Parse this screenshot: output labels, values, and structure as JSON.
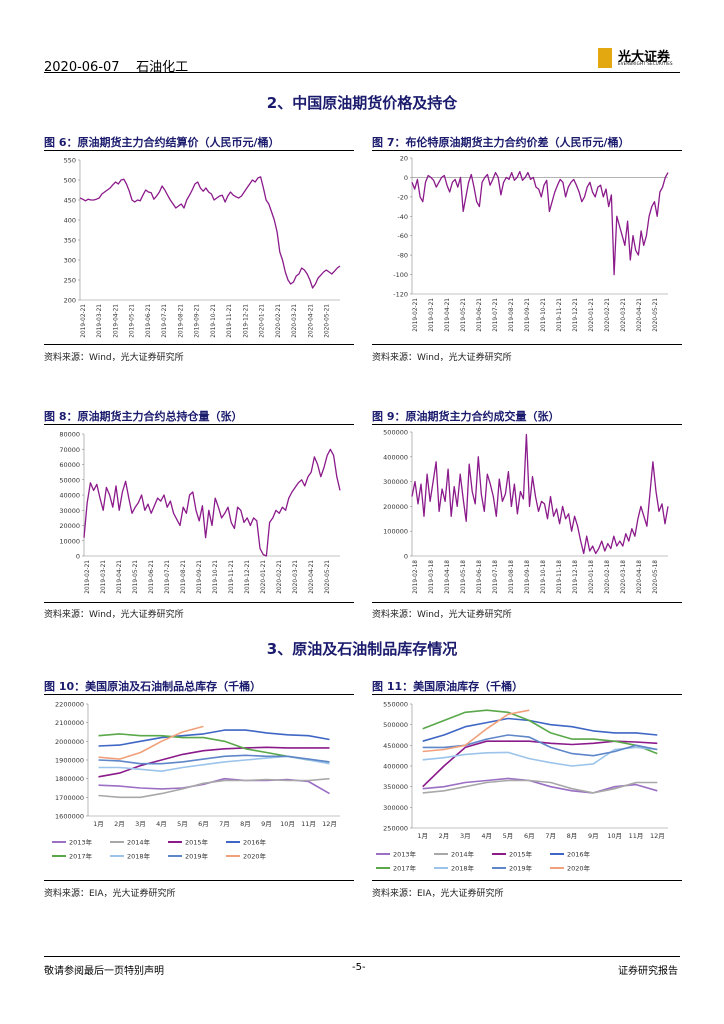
{
  "header": {
    "date": "2020-06-07",
    "sector": "石油化工",
    "logo_cn": "光大证券",
    "logo_en": "EVERBRIGHT SECURITIES"
  },
  "sections": [
    {
      "title": "2、中国原油期货价格及持仓"
    },
    {
      "title": "3、原油及石油制品库存情况"
    }
  ],
  "figures": [
    {
      "title": "图 6：原油期货主力合约结算价（人民币元/桶）",
      "source": "资料来源：Wind，光大证券研究所"
    },
    {
      "title": "图 7：布伦特原油期货主力合约价差（人民币元/桶）",
      "source": "资料来源：Wind，光大证券研究所"
    },
    {
      "title": "图 8：原油期货主力合约总持仓量（张）",
      "source": "资料来源：Wind，光大证券研究所"
    },
    {
      "title": "图 9：原油期货主力合约成交量（张）",
      "source": "资料来源：Wind，光大证券研究所"
    },
    {
      "title": "图 10：美国原油及石油制品总库存（千桶）",
      "source": "资料来源：EIA，光大证券研究所"
    },
    {
      "title": "图 11：美国原油库存（千桶）",
      "source": "资料来源：EIA，光大证券研究所"
    }
  ],
  "footer": {
    "left": "敬请参阅最后一页特别声明",
    "center": "-5-",
    "right": "证券研究报告"
  },
  "colors": {
    "purple": "#8b1a8b",
    "title_navy": "#1b1b6e",
    "logo_gold": "#e3a80f"
  },
  "chart_data": [
    {
      "type": "line",
      "yticks": [
        200,
        250,
        300,
        350,
        400,
        450,
        500,
        550
      ],
      "ylim": [
        200,
        550
      ],
      "xticks": [
        "2019-02-21",
        "2019-03-21",
        "2019-04-21",
        "2019-05-21",
        "2019-06-21",
        "2019-07-21",
        "2019-08-21",
        "2019-09-21",
        "2019-10-21",
        "2019-11-21",
        "2019-12-21",
        "2020-01-21",
        "2020-02-21",
        "2020-03-21",
        "2020-04-21",
        "2020-05-21"
      ],
      "series": [
        {
          "color": "#8b1a8b",
          "values": [
            455,
            452,
            448,
            452,
            450,
            450,
            452,
            455,
            465,
            470,
            475,
            480,
            488,
            495,
            490,
            500,
            502,
            490,
            472,
            450,
            445,
            450,
            448,
            462,
            475,
            470,
            468,
            452,
            460,
            470,
            485,
            475,
            462,
            450,
            440,
            430,
            435,
            440,
            430,
            450,
            462,
            475,
            490,
            495,
            480,
            472,
            480,
            470,
            465,
            450,
            455,
            460,
            462,
            445,
            460,
            470,
            462,
            458,
            455,
            460,
            470,
            480,
            490,
            500,
            495,
            505,
            508,
            480,
            450,
            440,
            420,
            400,
            370,
            320,
            300,
            270,
            250,
            240,
            245,
            260,
            265,
            280,
            275,
            265,
            250,
            230,
            240,
            255,
            262,
            270,
            275,
            270,
            265,
            272,
            280,
            285
          ]
        }
      ]
    },
    {
      "type": "line",
      "yticks": [
        20,
        0,
        -20,
        -40,
        -60,
        -80,
        -100,
        -120
      ],
      "ylim": [
        -120,
        20
      ],
      "xticks": [
        "2019-02-21",
        "2019-03-21",
        "2019-04-21",
        "2019-05-21",
        "2019-06-21",
        "2019-07-21",
        "2019-08-21",
        "2019-09-21",
        "2019-10-21",
        "2019-11-21",
        "2019-12-21",
        "2020-01-21",
        "2020-02-21",
        "2020-03-21",
        "2020-04-21",
        "2020-05-21"
      ],
      "series": [
        {
          "color": "#8b1a8b",
          "values": [
            -5,
            -12,
            -2,
            -20,
            -25,
            -5,
            2,
            0,
            -3,
            -10,
            -5,
            0,
            2,
            -8,
            -15,
            -5,
            -2,
            -10,
            0,
            -35,
            -20,
            -5,
            3,
            -10,
            -25,
            -30,
            -5,
            0,
            3,
            -8,
            -2,
            5,
            0,
            -18,
            -5,
            0,
            -2,
            5,
            -3,
            0,
            6,
            -3,
            0,
            5,
            -2,
            0,
            -10,
            -12,
            -20,
            -8,
            -3,
            -35,
            -25,
            -15,
            -8,
            -2,
            -5,
            -20,
            -10,
            -5,
            -2,
            -8,
            -15,
            -25,
            -20,
            -10,
            -5,
            -15,
            -20,
            -10,
            -8,
            -20,
            -12,
            -30,
            -18,
            -100,
            -40,
            -50,
            -60,
            -70,
            -45,
            -85,
            -60,
            -75,
            -80,
            -55,
            -70,
            -60,
            -40,
            -30,
            -25,
            -40,
            -15,
            -10,
            0,
            5
          ]
        }
      ]
    },
    {
      "type": "line",
      "yticks": [
        0,
        10000,
        20000,
        30000,
        40000,
        50000,
        60000,
        70000,
        80000
      ],
      "ylim": [
        0,
        80000
      ],
      "xticks": [
        "2019-02-21",
        "2019-03-21",
        "2019-04-21",
        "2019-05-21",
        "2019-06-21",
        "2019-07-21",
        "2019-08-21",
        "2019-09-21",
        "2019-10-21",
        "2019-11-21",
        "2019-12-21",
        "2020-01-21",
        "2020-02-21",
        "2020-03-21",
        "2020-04-21",
        "2020-05-21"
      ],
      "series": [
        {
          "color": "#8b1a8b",
          "values": [
            12000,
            35000,
            48000,
            43000,
            47000,
            38000,
            30000,
            45000,
            40000,
            32000,
            46000,
            30000,
            42000,
            49000,
            38000,
            28000,
            32000,
            35000,
            40000,
            30000,
            34000,
            28000,
            33000,
            38000,
            36000,
            40000,
            32000,
            36000,
            28000,
            24000,
            20000,
            32000,
            28000,
            40000,
            42000,
            30000,
            23000,
            33000,
            12000,
            30000,
            20000,
            38000,
            32000,
            25000,
            28000,
            32000,
            22000,
            18000,
            32000,
            30000,
            22000,
            25000,
            20000,
            25000,
            23000,
            5000,
            1000,
            0,
            22000,
            25000,
            30000,
            28000,
            32000,
            30000,
            38000,
            42000,
            45000,
            48000,
            50000,
            46000,
            52000,
            55000,
            65000,
            60000,
            52000,
            58000,
            66000,
            70000,
            66000,
            52000,
            43000
          ]
        }
      ]
    },
    {
      "type": "line",
      "yticks": [
        0,
        100000,
        200000,
        300000,
        400000,
        500000
      ],
      "ylim": [
        0,
        500000
      ],
      "xticks": [
        "2019-02-18",
        "2019-03-18",
        "2019-04-18",
        "2019-05-18",
        "2019-06-18",
        "2019-07-18",
        "2019-08-18",
        "2019-09-18",
        "2019-10-18",
        "2019-11-18",
        "2019-12-18",
        "2020-01-18",
        "2020-02-18",
        "2020-03-18",
        "2020-04-18",
        "2020-05-18"
      ],
      "series": [
        {
          "color": "#8b1a8b",
          "values": [
            240000,
            300000,
            210000,
            290000,
            160000,
            330000,
            220000,
            300000,
            380000,
            180000,
            270000,
            220000,
            350000,
            160000,
            280000,
            200000,
            330000,
            230000,
            140000,
            370000,
            260000,
            210000,
            400000,
            250000,
            180000,
            330000,
            290000,
            240000,
            160000,
            310000,
            220000,
            250000,
            340000,
            200000,
            290000,
            170000,
            260000,
            230000,
            490000,
            200000,
            320000,
            240000,
            180000,
            220000,
            210000,
            150000,
            240000,
            160000,
            190000,
            130000,
            200000,
            150000,
            170000,
            100000,
            160000,
            120000,
            60000,
            10000,
            80000,
            20000,
            40000,
            10000,
            30000,
            60000,
            20000,
            50000,
            30000,
            80000,
            40000,
            60000,
            40000,
            90000,
            60000,
            110000,
            80000,
            150000,
            200000,
            160000,
            120000,
            250000,
            380000,
            260000,
            180000,
            210000,
            130000,
            200000
          ]
        }
      ]
    },
    {
      "type": "line",
      "yticks": [
        1600000,
        1700000,
        1800000,
        1900000,
        2000000,
        2100000,
        2200000
      ],
      "ylim": [
        1600000,
        2200000
      ],
      "xticks": [
        "1月",
        "2月",
        "3月",
        "4月",
        "5月",
        "6月",
        "7月",
        "8月",
        "9月",
        "10月",
        "11月",
        "12月"
      ],
      "legend": [
        "2013年",
        "2014年",
        "2015年",
        "2016年",
        "2017年",
        "2018年",
        "2019年",
        "2020年"
      ],
      "series": [
        {
          "name": "2013年",
          "color": "#9a6fc4",
          "values": [
            1765000,
            1760000,
            1750000,
            1745000,
            1750000,
            1770000,
            1800000,
            1790000,
            1790000,
            1795000,
            1785000,
            1720000
          ]
        },
        {
          "name": "2014年",
          "color": "#a8a8a8",
          "values": [
            1710000,
            1700000,
            1700000,
            1720000,
            1745000,
            1775000,
            1790000,
            1790000,
            1795000,
            1790000,
            1790000,
            1800000
          ]
        },
        {
          "name": "2015年",
          "color": "#8b1a8b",
          "values": [
            1810000,
            1830000,
            1870000,
            1900000,
            1930000,
            1950000,
            1960000,
            1965000,
            1968000,
            1965000,
            1965000,
            1965000
          ]
        },
        {
          "name": "2016年",
          "color": "#3f66c4",
          "values": [
            1975000,
            1980000,
            2000000,
            2020000,
            2030000,
            2040000,
            2060000,
            2060000,
            2045000,
            2035000,
            2030000,
            2010000
          ]
        },
        {
          "name": "2017年",
          "color": "#5aa84a",
          "values": [
            2030000,
            2040000,
            2030000,
            2030000,
            2020000,
            2020000,
            2000000,
            1960000,
            1940000,
            1920000,
            1900000,
            1890000
          ]
        },
        {
          "name": "2018年",
          "color": "#9cc4ea",
          "values": [
            1860000,
            1860000,
            1850000,
            1840000,
            1860000,
            1875000,
            1890000,
            1900000,
            1910000,
            1920000,
            1900000,
            1880000
          ]
        },
        {
          "name": "2019年",
          "color": "#5e86c9",
          "values": [
            1900000,
            1895000,
            1880000,
            1880000,
            1890000,
            1905000,
            1920000,
            1925000,
            1920000,
            1920000,
            1905000,
            1890000
          ]
        },
        {
          "name": "2020年",
          "color": "#f0a07a",
          "values": [
            1915000,
            1905000,
            1940000,
            2000000,
            2050000,
            2080000
          ]
        }
      ]
    },
    {
      "type": "line",
      "yticks": [
        250000,
        300000,
        350000,
        400000,
        450000,
        500000,
        550000
      ],
      "ylim": [
        250000,
        550000
      ],
      "xticks": [
        "1月",
        "2月",
        "3月",
        "4月",
        "5月",
        "6月",
        "7月",
        "8月",
        "9月",
        "10月",
        "11月",
        "12月"
      ],
      "legend": [
        "2013年",
        "2014年",
        "2015年",
        "2016年",
        "2017年",
        "2018年",
        "2019年",
        "2020年"
      ],
      "series": [
        {
          "name": "2013年",
          "color": "#9a6fc4",
          "values": [
            345000,
            350000,
            360000,
            365000,
            370000,
            365000,
            350000,
            340000,
            335000,
            350000,
            355000,
            340000
          ]
        },
        {
          "name": "2014年",
          "color": "#a8a8a8",
          "values": [
            335000,
            340000,
            350000,
            360000,
            365000,
            365000,
            360000,
            345000,
            335000,
            345000,
            360000,
            360000
          ]
        },
        {
          "name": "2015年",
          "color": "#8b1a8b",
          "values": [
            350000,
            400000,
            445000,
            460000,
            460000,
            460000,
            455000,
            452000,
            455000,
            460000,
            458000,
            455000
          ]
        },
        {
          "name": "2016年",
          "color": "#3f66c4",
          "values": [
            460000,
            475000,
            495000,
            505000,
            515000,
            510000,
            500000,
            495000,
            485000,
            480000,
            480000,
            475000
          ]
        },
        {
          "name": "2017年",
          "color": "#5aa84a",
          "values": [
            490000,
            510000,
            530000,
            535000,
            530000,
            510000,
            480000,
            465000,
            465000,
            460000,
            450000,
            430000
          ]
        },
        {
          "name": "2018年",
          "color": "#9cc4ea",
          "values": [
            415000,
            420000,
            428000,
            432000,
            433000,
            418000,
            408000,
            400000,
            405000,
            440000,
            445000,
            440000
          ]
        },
        {
          "name": "2019年",
          "color": "#5e86c9",
          "values": [
            445000,
            445000,
            450000,
            465000,
            475000,
            470000,
            445000,
            430000,
            425000,
            435000,
            450000,
            440000
          ]
        },
        {
          "name": "2020年",
          "color": "#f0a07a",
          "values": [
            435000,
            440000,
            450000,
            490000,
            525000,
            535000
          ]
        }
      ]
    }
  ]
}
